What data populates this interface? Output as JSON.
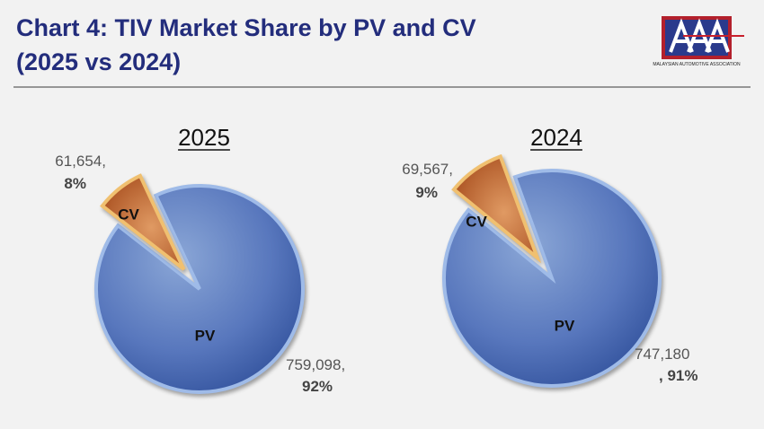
{
  "header": {
    "title": "Chart 4: TIV Market Share by PV and CV",
    "subtitle": "(2025 vs 2024)"
  },
  "logo": {
    "text": "MALAYSIAN AUTOMOTIVE ASSOCIATION"
  },
  "chart_data": [
    {
      "type": "pie",
      "title": "2025",
      "categories": [
        "PV",
        "CV"
      ],
      "values": [
        759098,
        61654
      ],
      "value_labels": [
        "759,098,",
        "61,654,"
      ],
      "percents": [
        92,
        8
      ],
      "percent_labels": [
        "92%",
        "8%"
      ],
      "colors": [
        "#4a6cb4",
        "#c8662e"
      ]
    },
    {
      "type": "pie",
      "title": "2024",
      "categories": [
        "PV",
        "CV"
      ],
      "values": [
        747180,
        69567
      ],
      "value_labels": [
        "747,180",
        "69,567,"
      ],
      "percents": [
        91,
        9
      ],
      "percent_labels": [
        ", 91%",
        "9%"
      ],
      "colors": [
        "#4a6cb4",
        "#c8662e"
      ]
    }
  ]
}
